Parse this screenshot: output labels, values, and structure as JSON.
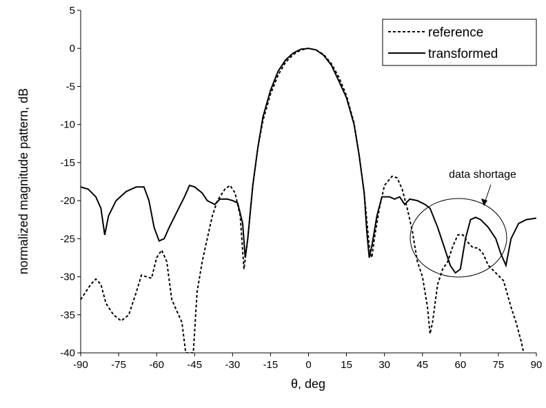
{
  "chart_data": {
    "type": "line",
    "xlabel": "θ, deg",
    "ylabel": "normalized magnitude pattern, dB",
    "xlim": [
      -90,
      90
    ],
    "xticks": [
      -90,
      -75,
      -60,
      -45,
      -30,
      -15,
      0,
      15,
      30,
      45,
      60,
      75,
      90
    ],
    "ylim": [
      -40,
      5
    ],
    "yticks": [
      -40,
      -35,
      -30,
      -25,
      -20,
      -15,
      -10,
      -5,
      0,
      5
    ],
    "legend": "upper right",
    "annotation": "data shortage",
    "series": [
      {
        "name": "reference",
        "color": "#000000",
        "line_style": "dashed",
        "x": [
          -90,
          -86,
          -84,
          -82,
          -80,
          -77,
          -74,
          -71,
          -68,
          -66,
          -64,
          -62,
          -60,
          -58,
          -56,
          -54,
          -52,
          -50,
          -48.5,
          -45.5,
          -44,
          -42,
          -40,
          -38,
          -36,
          -33,
          -31,
          -29,
          -27,
          -25.5,
          -24,
          -22,
          -20,
          -18,
          -15,
          -12,
          -9,
          -6,
          -3,
          0,
          3,
          6,
          9,
          12,
          15,
          18,
          20,
          22,
          24,
          25,
          26,
          28,
          30,
          33,
          35,
          37,
          39,
          41,
          43,
          45,
          47,
          48,
          49,
          51,
          53,
          55,
          57,
          59,
          61,
          63,
          65,
          67,
          69,
          71,
          74,
          77,
          80,
          82,
          84,
          85
        ],
        "values": [
          -33,
          -31,
          -30.3,
          -31,
          -33.5,
          -35,
          -35.8,
          -35,
          -32,
          -29.8,
          -30,
          -30.2,
          -27.5,
          -26.5,
          -28,
          -33,
          -34.5,
          -36,
          -40,
          -40,
          -32,
          -28,
          -25,
          -22,
          -20,
          -18.5,
          -18,
          -19,
          -22,
          -29,
          -25,
          -18,
          -13,
          -9.5,
          -6,
          -3.5,
          -1.8,
          -0.8,
          -0.2,
          0,
          -0.2,
          -0.8,
          -2,
          -3.8,
          -6.2,
          -9.8,
          -14,
          -19,
          -26,
          -27.5,
          -25,
          -21,
          -18,
          -16.8,
          -17,
          -18.5,
          -21,
          -24,
          -28,
          -30,
          -34,
          -37.5,
          -36,
          -31,
          -29,
          -28,
          -26,
          -24.5,
          -24.5,
          -25.5,
          -26.2,
          -26.2,
          -27,
          -28.5,
          -29.5,
          -30.5,
          -34,
          -36,
          -38.5,
          -40
        ]
      },
      {
        "name": "transformed",
        "color": "#000000",
        "line_style": "solid",
        "x": [
          -90,
          -87,
          -84,
          -82,
          -80.5,
          -79,
          -76,
          -72,
          -68,
          -65,
          -63,
          -61,
          -59,
          -57,
          -55,
          -52,
          -49,
          -47,
          -45,
          -42,
          -40,
          -37,
          -35,
          -32,
          -30,
          -28,
          -26,
          -25,
          -24,
          -22,
          -20,
          -18,
          -15,
          -12,
          -9,
          -6,
          -3,
          0,
          3,
          6,
          9,
          12,
          15,
          18,
          20,
          22,
          23,
          24,
          25,
          27,
          29,
          32,
          34,
          36,
          38,
          40,
          43,
          46,
          48,
          51,
          54,
          56,
          58,
          60,
          62,
          64,
          66,
          68,
          71,
          74,
          76,
          78,
          80,
          83,
          86,
          90
        ],
        "values": [
          -18.2,
          -18.5,
          -19.5,
          -21,
          -24.5,
          -22,
          -20,
          -18.8,
          -18.2,
          -18.2,
          -20,
          -23.5,
          -25.3,
          -25,
          -23.5,
          -21.5,
          -19.5,
          -18,
          -18.2,
          -19,
          -20,
          -20.5,
          -19.8,
          -19.8,
          -20,
          -20.3,
          -23,
          -27.5,
          -25,
          -18,
          -13,
          -9,
          -5.5,
          -3,
          -1.5,
          -0.6,
          -0.1,
          0,
          -0.2,
          -0.9,
          -2.2,
          -4.3,
          -6.5,
          -10,
          -14,
          -19,
          -24,
          -27.5,
          -26,
          -22,
          -19.5,
          -19.5,
          -19.8,
          -19.5,
          -20.5,
          -19.8,
          -20,
          -20.5,
          -21,
          -23.5,
          -26.5,
          -28.5,
          -29.5,
          -29,
          -25,
          -22.5,
          -22.2,
          -22.5,
          -23.5,
          -25,
          -27,
          -28.5,
          -25,
          -23,
          -22.5,
          -22.3
        ]
      }
    ]
  }
}
